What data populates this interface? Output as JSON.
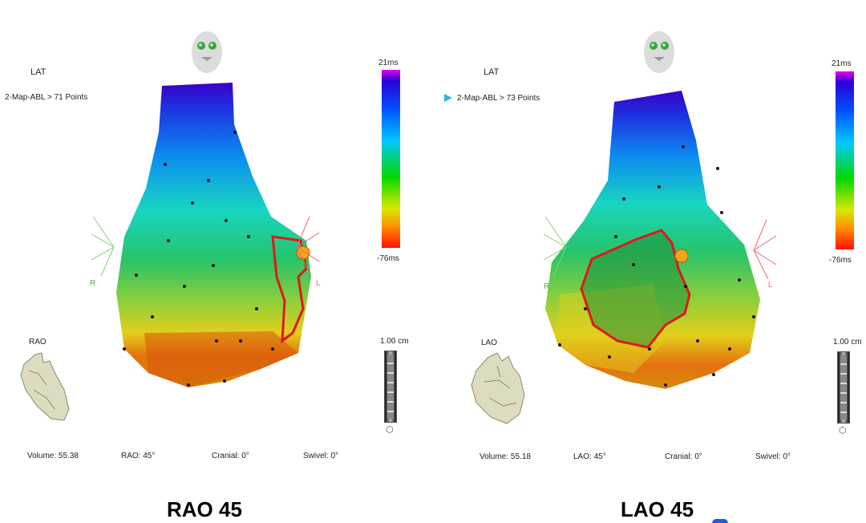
{
  "colors": {
    "accent": "#27b7d9",
    "ablation_outline": "#e01818",
    "right_marker": "#7fd36f",
    "left_marker": "#e66",
    "catheter_tip": "#f2a51e"
  },
  "left": {
    "title": "RAO 45",
    "lat_label": "LAT",
    "map_label": "2-Map-ABL > 71 Points",
    "scale_max": "21ms",
    "scale_min": "-76ms",
    "distance_scale": "1.00 cm",
    "orientation": "RAO",
    "r_label": "R",
    "l_label": "L",
    "status": {
      "volume": "Volume:  55.38",
      "angle": "RAO: 45°",
      "cranial": "Cranial: 0°",
      "swivel": "Swivel: 0°"
    },
    "face_icon": "face-orientation-icon",
    "heart_icon": "heart-orientation-icon"
  },
  "right": {
    "title": "LAO 45",
    "lat_label": "LAT",
    "map_label": "2-Map-ABL > 73 Points",
    "scale_max": "21ms",
    "scale_min": "-76ms",
    "distance_scale": "1.00 cm",
    "orientation": "LAO",
    "r_label": "R",
    "l_label": "L",
    "status": {
      "volume": "Volume:  55.18",
      "angle": "LAO: 45°",
      "cranial": "Cranial: 0°",
      "swivel": "Swivel: 0°"
    },
    "face_icon": "face-orientation-icon",
    "heart_icon": "heart-orientation-icon"
  }
}
